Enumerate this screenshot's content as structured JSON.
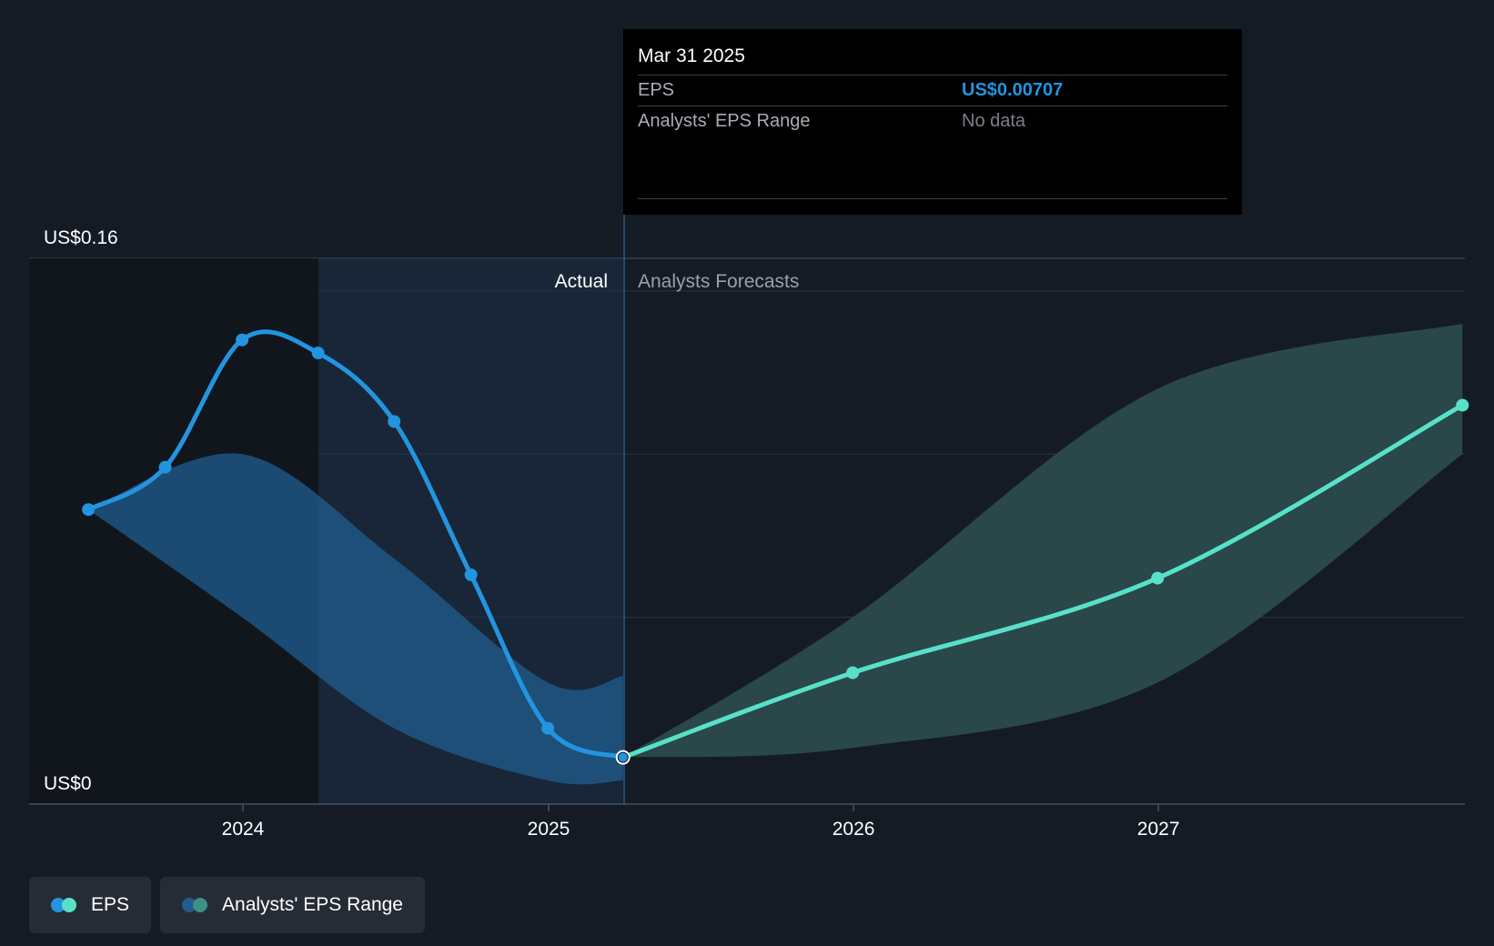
{
  "tooltip": {
    "date": "Mar 31 2025",
    "eps_label": "EPS",
    "eps_value": "US$0.00707",
    "range_label": "Analysts' EPS Range",
    "range_value": "No data"
  },
  "labels": {
    "actual": "Actual",
    "forecast": "Analysts Forecasts"
  },
  "legend": {
    "eps": "EPS",
    "range": "Analysts' EPS Range"
  },
  "colors": {
    "background": "#151b24",
    "actual_line": "#2394df",
    "actual_band": "#1f5d8f",
    "forecast_line": "#58e1c9",
    "forecast_band": "#2b4a4c",
    "tooltip_value": "#2394df",
    "grid": "#3a414b"
  },
  "chart_data": {
    "type": "line",
    "ylim": [
      0,
      0.16
    ],
    "y_tick_labels": [
      "US$0",
      "US$0.16"
    ],
    "x_tick_labels": [
      "2024",
      "2025",
      "2026",
      "2027"
    ],
    "highlight_date": "2025-03-31",
    "series": [
      {
        "name": "EPS",
        "kind": "actual",
        "x": [
          "2023-06-30",
          "2023-09-30",
          "2023-12-31",
          "2024-03-31",
          "2024-06-30",
          "2024-09-30",
          "2024-12-31",
          "2025-03-31"
        ],
        "y": [
          0.083,
          0.096,
          0.135,
          0.131,
          0.11,
          0.063,
          0.016,
          0.00707
        ]
      },
      {
        "name": "EPS",
        "kind": "forecast",
        "x": [
          "2025-03-31",
          "2025-12-31",
          "2026-12-31",
          "2027-12-31"
        ],
        "y": [
          0.00707,
          0.033,
          0.062,
          0.115
        ]
      },
      {
        "name": "Analysts' EPS Range",
        "kind": "actual_range",
        "x": [
          "2023-06-30",
          "2023-12-31",
          "2024-06-30",
          "2024-12-31",
          "2025-03-31"
        ],
        "low": [
          0.083,
          0.05,
          0.016,
          0.0,
          0.0
        ],
        "high": [
          0.083,
          0.1,
          0.068,
          0.03,
          0.032
        ]
      },
      {
        "name": "Analysts' EPS Range",
        "kind": "forecast_range",
        "x": [
          "2025-03-31",
          "2025-12-31",
          "2026-12-31",
          "2027-12-31"
        ],
        "low": [
          0.00707,
          0.01,
          0.03,
          0.1
        ],
        "high": [
          0.00707,
          0.05,
          0.12,
          0.14
        ]
      }
    ]
  }
}
